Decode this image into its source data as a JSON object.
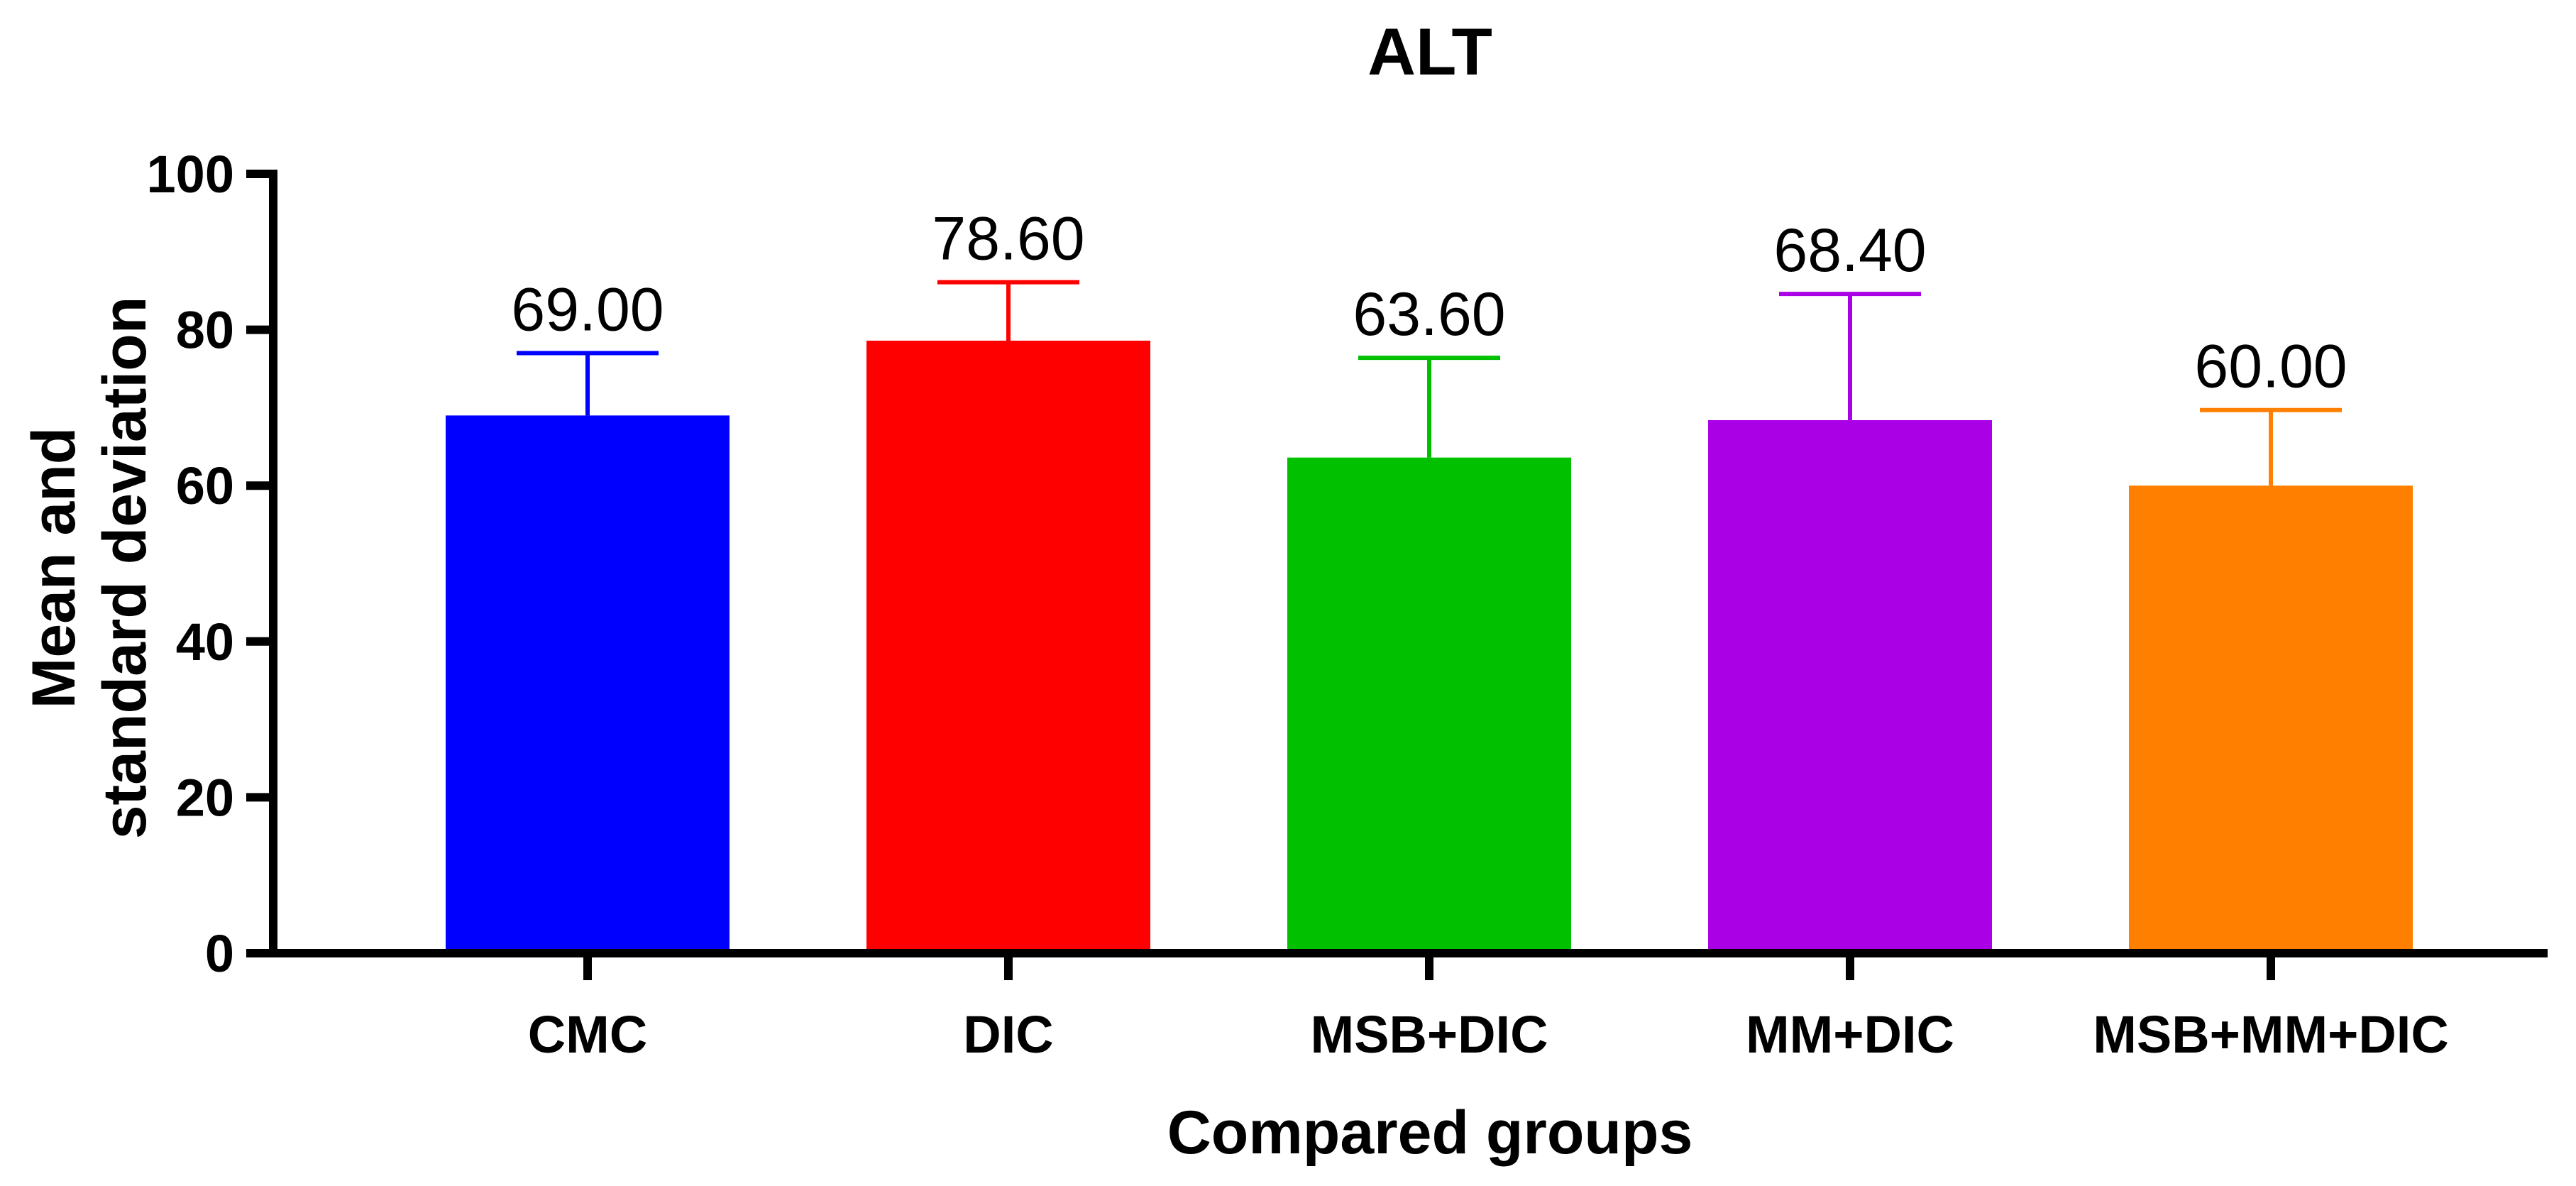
{
  "chart_data": {
    "type": "bar",
    "title": "ALT",
    "xlabel": "Compared groups",
    "ylabel_lines": [
      "Mean and",
      "standard deviation"
    ],
    "categories": [
      "CMC",
      "DIC",
      "MSB+DIC",
      "MM+DIC",
      "MSB+MM+DIC"
    ],
    "values": [
      69.0,
      78.6,
      63.6,
      68.4,
      60.0
    ],
    "errors": [
      8.0,
      7.5,
      12.8,
      16.2,
      9.7
    ],
    "value_labels": [
      "69.00",
      "78.60",
      "63.60",
      "68.40",
      "60.00"
    ],
    "colors": [
      "#0000ff",
      "#ff0000",
      "#00c000",
      "#aa00e6",
      "#ff8000"
    ],
    "ylim": [
      0,
      100
    ],
    "yticks": [
      0,
      20,
      40,
      60,
      80,
      100
    ],
    "grid": false
  }
}
